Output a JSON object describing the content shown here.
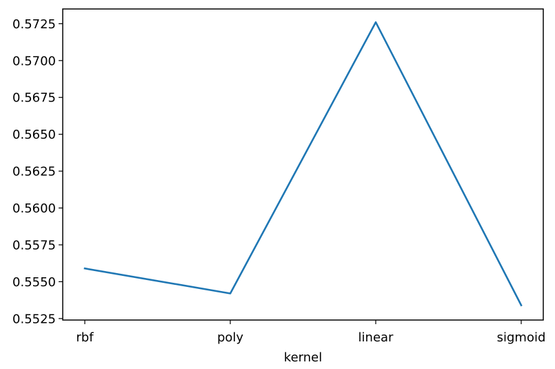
{
  "chart_data": {
    "type": "line",
    "title": "",
    "xlabel": "kernel",
    "ylabel": "",
    "categories": [
      "rbf",
      "poly",
      "linear",
      "sigmoid"
    ],
    "series": [
      {
        "values": [
          0.5559,
          0.5542,
          0.5726,
          0.5534
        ],
        "color": "#1f77b4"
      }
    ],
    "ylim": [
      0.5524,
      0.5735
    ],
    "yticks": [
      0.5525,
      0.555,
      0.5575,
      0.56,
      0.5625,
      0.565,
      0.5675,
      0.57,
      0.5725
    ],
    "ytick_labels": [
      "0.5525",
      "0.5550",
      "0.5575",
      "0.5600",
      "0.5625",
      "0.5650",
      "0.5675",
      "0.5700",
      "0.5725"
    ],
    "grid": false,
    "legend": "none"
  }
}
